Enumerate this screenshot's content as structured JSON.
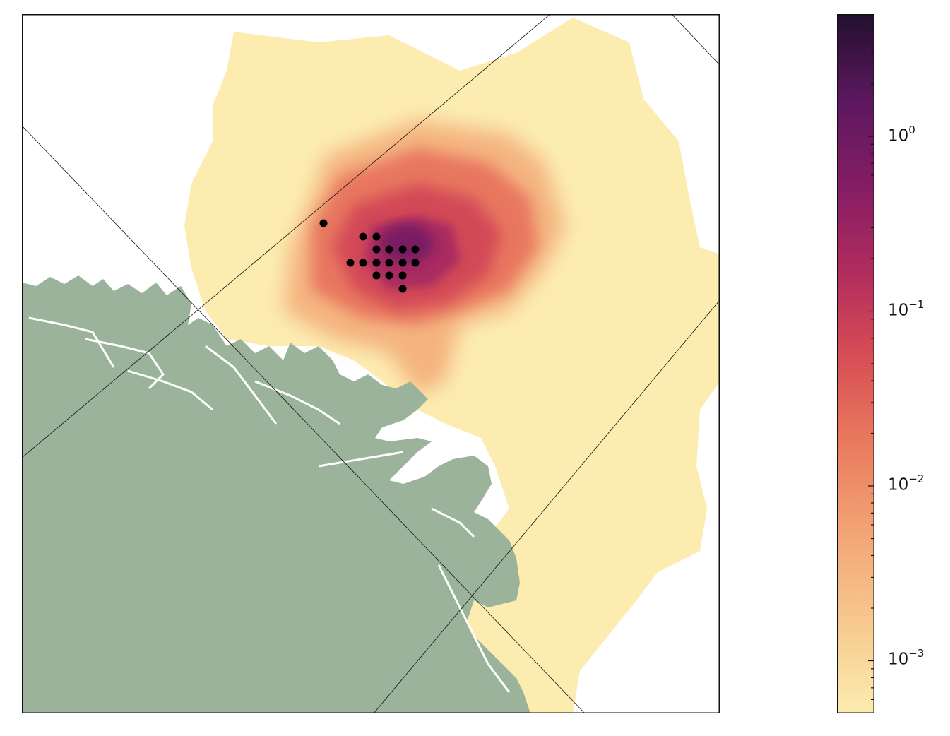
{
  "colors": {
    "land": "#9ab39a",
    "frame": "#111111",
    "particles": "#000000",
    "gridlines": "#111111",
    "colormap": [
      "#fcecb0",
      "#f7c58c",
      "#f0a372",
      "#e8765c",
      "#d94d55",
      "#b82f5d",
      "#8e1f64",
      "#661a60",
      "#3d1249",
      "#23102f"
    ]
  },
  "colorbar": {
    "scale": "log",
    "range": [
      0.0005,
      5
    ],
    "ticks": [
      {
        "value": 1,
        "base": "10",
        "exp": "0"
      },
      {
        "value": 0.1,
        "base": "10",
        "exp": "−1"
      },
      {
        "value": 0.01,
        "base": "10",
        "exp": "−2"
      },
      {
        "value": 0.001,
        "base": "10",
        "exp": "−3"
      }
    ]
  },
  "particle_count": 18
}
